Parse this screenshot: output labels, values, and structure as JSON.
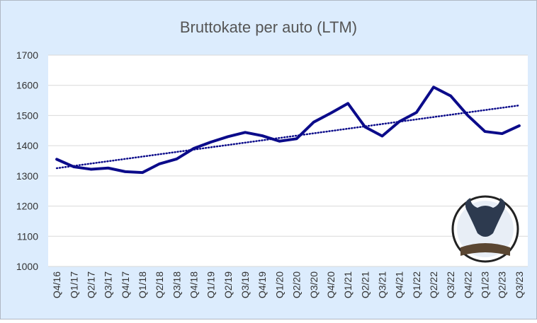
{
  "chart_data": {
    "type": "line",
    "title": "Bruttokate per auto (LTM)",
    "categories": [
      "Q4/16",
      "Q1/17",
      "Q2/17",
      "Q3/17",
      "Q4/17",
      "Q1/18",
      "Q2/18",
      "Q3/18",
      "Q4/18",
      "Q1/19",
      "Q2/19",
      "Q3/19",
      "Q4/19",
      "Q1/20",
      "Q2/20",
      "Q3/20",
      "Q4/20",
      "Q1/21",
      "Q2/21",
      "Q3/21",
      "Q4/21",
      "Q1/22",
      "Q2/22",
      "Q3/22",
      "Q4/22",
      "Q1/23",
      "Q2/23",
      "Q3/23"
    ],
    "values": [
      1355,
      1330,
      1322,
      1326,
      1314,
      1311,
      1340,
      1356,
      1391,
      1412,
      1430,
      1444,
      1433,
      1415,
      1423,
      1478,
      1508,
      1540,
      1462,
      1432,
      1480,
      1510,
      1594,
      1565,
      1500,
      1447,
      1440,
      1466
    ],
    "color": "#0b0b8a",
    "trendline": true,
    "ylim": [
      1000,
      1700
    ],
    "yticks": [
      1000,
      1100,
      1200,
      1300,
      1400,
      1500,
      1600,
      1700
    ],
    "grid": true
  }
}
